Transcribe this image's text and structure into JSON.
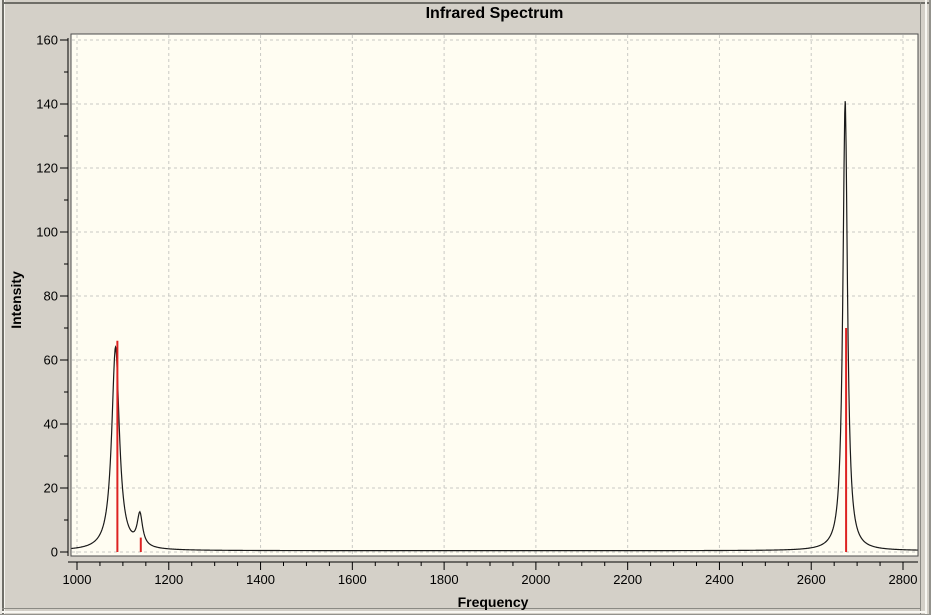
{
  "chart_data": {
    "type": "line",
    "title": "Infrared Spectrum",
    "xlabel": "Frequency",
    "ylabel": "Intensity",
    "xlim": [
      987,
      2833
    ],
    "ylim": [
      -1.3,
      162
    ],
    "x_tick_labels": [
      1000,
      1200,
      1400,
      1600,
      1800,
      2000,
      2200,
      2400,
      2600,
      2800
    ],
    "x_minor_step": 50,
    "y_tick_labels": [
      0,
      20,
      40,
      60,
      80,
      100,
      120,
      140,
      160
    ],
    "y_minor_step": 10,
    "grid": {
      "major": true,
      "style": "dashed"
    },
    "baseline": 0.4,
    "envelope_peaks": [
      {
        "center": 1084,
        "height": 63.5,
        "hwhm": 10
      },
      {
        "center": 1137,
        "height": 10.0,
        "hwhm": 7
      },
      {
        "center": 2674,
        "height": 140.5,
        "hwhm": 6
      }
    ],
    "stick_lines": [
      {
        "x": 1088,
        "height": 66
      },
      {
        "x": 1139,
        "height": 4.5
      },
      {
        "x": 2676,
        "height": 70
      }
    ],
    "colors": {
      "envelope": "#1a1a1a",
      "sticks": "#dd2222",
      "grid": "#c9c9c4",
      "plot_bg": "#fffdf2",
      "plot_border": "#4d4d4d",
      "axis": "#000000",
      "window_bg": "#d4d0c8"
    }
  }
}
